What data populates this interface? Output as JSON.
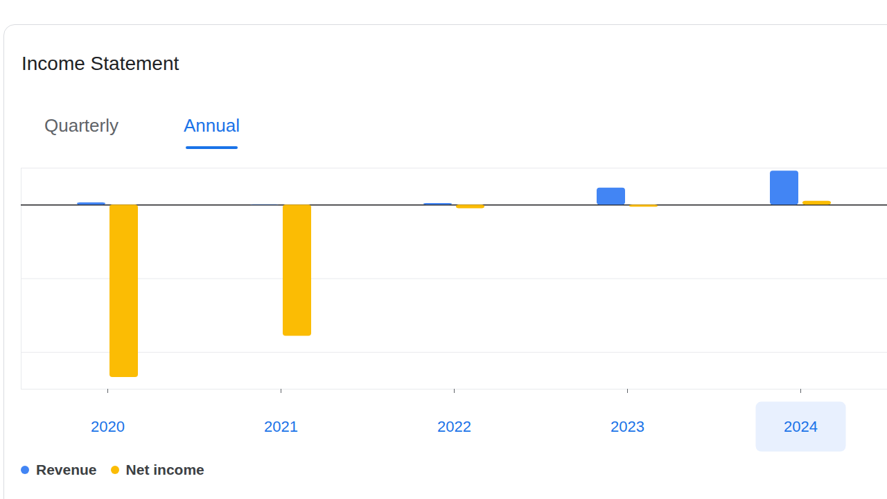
{
  "chart_data": {
    "type": "bar",
    "title": "Income Statement",
    "tabs": [
      "Quarterly",
      "Annual"
    ],
    "selected_tab": "Annual",
    "selected_category": "2024",
    "categories": [
      "2020",
      "2021",
      "2022",
      "2023",
      "2024"
    ],
    "series": [
      {
        "name": "Revenue",
        "color": "#4285f4",
        "values": [
          0.03,
          0.005,
          0.02,
          0.23,
          0.46
        ]
      },
      {
        "name": "Net income",
        "color": "#fbbc04",
        "values": [
          -2.34,
          -1.78,
          -0.05,
          -0.03,
          0.05
        ]
      }
    ],
    "ylim": [
      -2.5,
      0.5
    ],
    "yticks": [
      -2,
      -1,
      0
    ],
    "grid": true,
    "tick_labels": "x",
    "legend": "bottom-left"
  }
}
